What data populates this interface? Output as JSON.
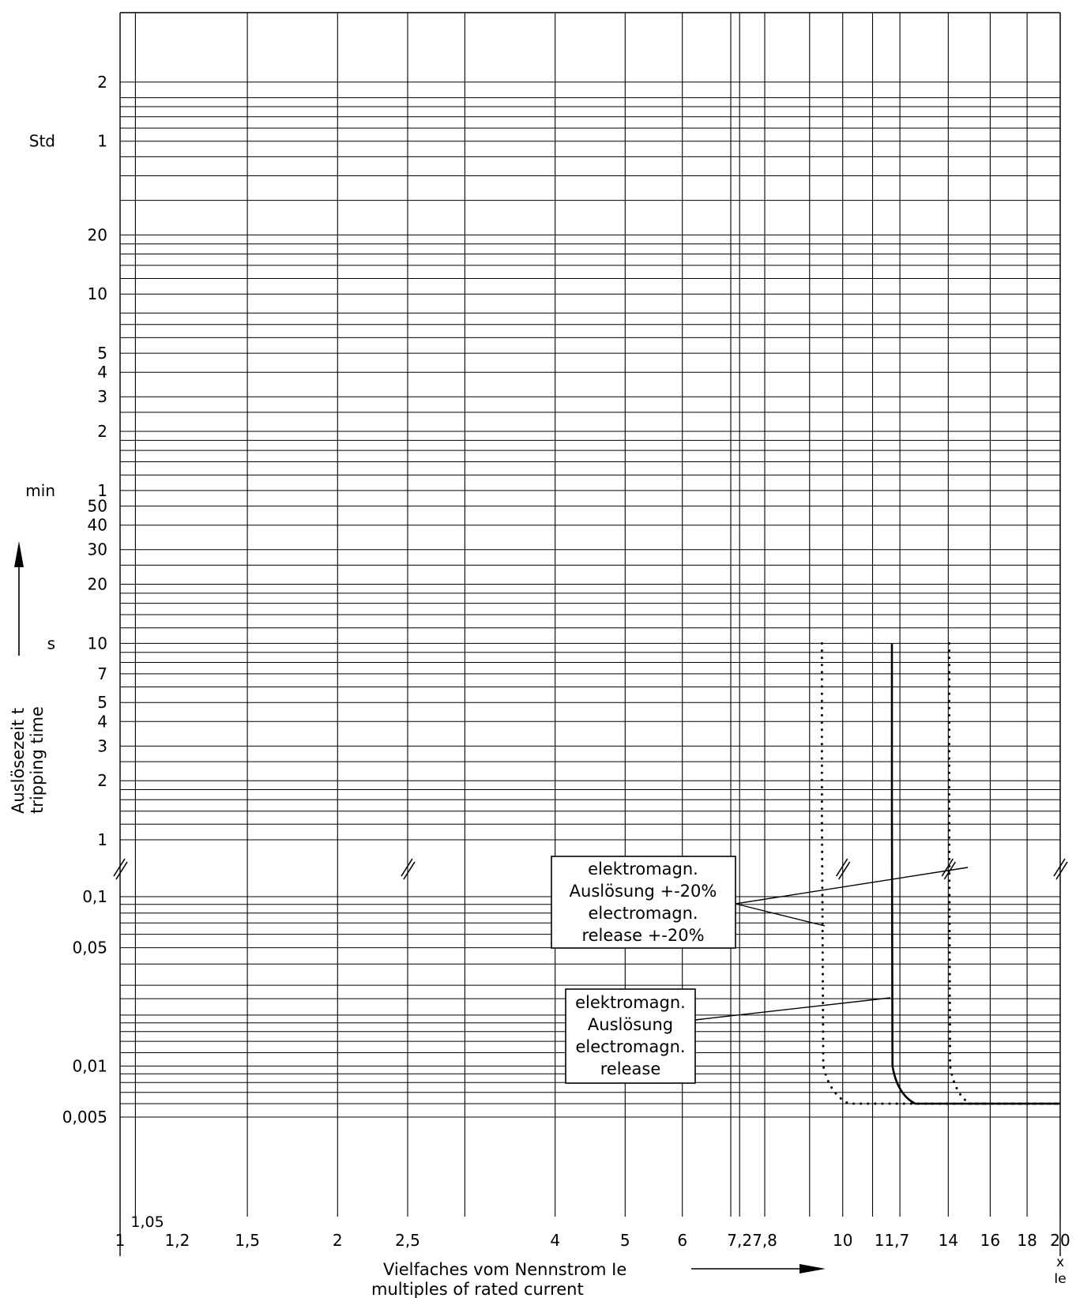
{
  "chart_data": {
    "type": "line",
    "xlabel_lines": [
      "Vielfaches vom Nennstrom Ie",
      "multiples of rated current"
    ],
    "ylabel_lines": [
      "Auslösezeit t",
      "tripping time"
    ],
    "x_scale": "log",
    "xlim": [
      1,
      20
    ],
    "x_ticks": [
      {
        "v": 1,
        "label": "1"
      },
      {
        "v": 1.2,
        "label": "1,2"
      },
      {
        "v": 1.5,
        "label": "1,5"
      },
      {
        "v": 2,
        "label": "2"
      },
      {
        "v": 2.5,
        "label": "2,5"
      },
      {
        "v": 4,
        "label": "4"
      },
      {
        "v": 5,
        "label": "5"
      },
      {
        "v": 6,
        "label": "6"
      },
      {
        "v": 7.2,
        "label": "7,2"
      },
      {
        "v": 7.8,
        "label": "7,8"
      },
      {
        "v": 10,
        "label": "10"
      },
      {
        "v": 11.7,
        "label": "11,7"
      },
      {
        "v": 14,
        "label": "14"
      },
      {
        "v": 16,
        "label": "16"
      },
      {
        "v": 18,
        "label": "18"
      },
      {
        "v": 20,
        "label": "20"
      }
    ],
    "x_extra_label": "1,05",
    "x_unit_lines": [
      "x",
      "Ie"
    ],
    "x_grid": [
      1.05,
      1.5,
      2,
      2.5,
      3,
      4,
      5,
      6,
      7,
      7.2,
      7.8,
      9,
      10,
      11,
      12,
      14,
      16,
      18,
      20
    ],
    "y_scale": "log",
    "y_ticks": [
      {
        "label": "2",
        "unit": ""
      },
      {
        "label": "1",
        "unit": "Std"
      },
      {
        "label": "20",
        "unit": ""
      },
      {
        "label": "10",
        "unit": ""
      },
      {
        "label": "5",
        "unit": ""
      },
      {
        "label": "4",
        "unit": ""
      },
      {
        "label": "3",
        "unit": ""
      },
      {
        "label": "2",
        "unit": ""
      },
      {
        "label": "1",
        "unit": "min"
      },
      {
        "label": "50",
        "unit": ""
      },
      {
        "label": "40",
        "unit": ""
      },
      {
        "label": "30",
        "unit": ""
      },
      {
        "label": "20",
        "unit": ""
      },
      {
        "label": "10",
        "unit": "s"
      },
      {
        "label": "7",
        "unit": ""
      },
      {
        "label": "5",
        "unit": ""
      },
      {
        "label": "4",
        "unit": ""
      },
      {
        "label": "3",
        "unit": ""
      },
      {
        "label": "2",
        "unit": ""
      },
      {
        "label": "1",
        "unit": ""
      },
      {
        "label": "0,1",
        "unit": ""
      },
      {
        "label": "0,05",
        "unit": ""
      },
      {
        "label": "0,01",
        "unit": ""
      },
      {
        "label": "0,005",
        "unit": ""
      }
    ],
    "series": [
      {
        "style": "solid",
        "points": [
          [
            11.7,
            10
          ],
          [
            11.7,
            0.3
          ],
          [
            11.72,
            0.01
          ],
          [
            11.9,
            0.0068
          ],
          [
            12.6,
            0.006
          ],
          [
            20,
            0.006
          ]
        ]
      },
      {
        "style": "dotted",
        "points": [
          [
            9.36,
            10
          ],
          [
            9.36,
            0.3
          ],
          [
            9.4,
            0.01
          ],
          [
            9.6,
            0.0068
          ],
          [
            10.2,
            0.006
          ],
          [
            20,
            0.006
          ]
        ]
      },
      {
        "style": "dotted",
        "points": [
          [
            14.04,
            10
          ],
          [
            14.04,
            0.3
          ],
          [
            14.08,
            0.01
          ],
          [
            14.3,
            0.0068
          ],
          [
            15,
            0.006
          ],
          [
            20,
            0.006
          ]
        ]
      }
    ],
    "annotations": [
      {
        "lines": [
          "elektromagn.",
          "Auslösung +-20%",
          "electromagn.",
          "release +-20%"
        ]
      },
      {
        "lines": [
          "elektromagn.",
          "Auslösung",
          "electromagn.",
          "release"
        ]
      }
    ]
  }
}
